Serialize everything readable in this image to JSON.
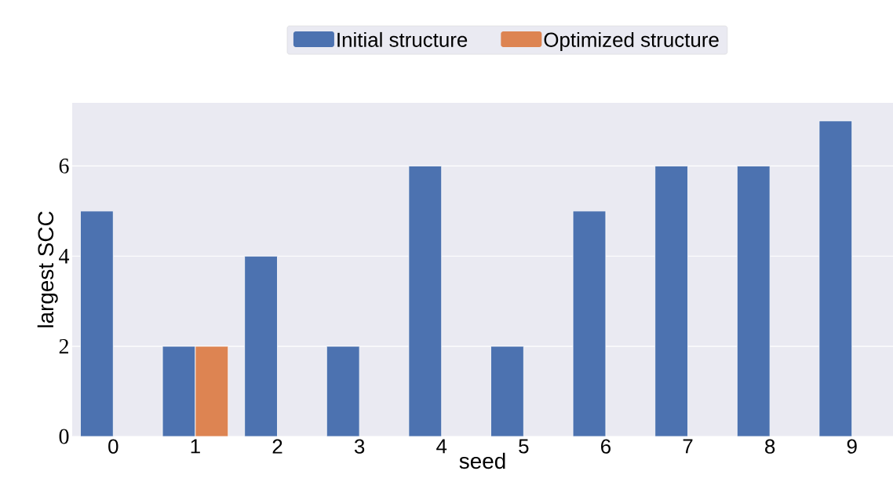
{
  "chart_data": {
    "type": "bar",
    "xlabel": "seed",
    "ylabel": "largest SCC",
    "categories": [
      "0",
      "1",
      "2",
      "3",
      "4",
      "5",
      "6",
      "7",
      "8",
      "9"
    ],
    "series": [
      {
        "name": "Initial structure",
        "color": "#4c72b0",
        "values": [
          5,
          2,
          4,
          2,
          6,
          2,
          5,
          6,
          6,
          7
        ]
      },
      {
        "name": "Optimized structure",
        "color": "#dd8452",
        "values": [
          null,
          2,
          null,
          null,
          null,
          null,
          null,
          null,
          null,
          null
        ]
      }
    ],
    "ylim": [
      0,
      7.4
    ],
    "yticks": [
      0,
      2,
      4,
      6
    ],
    "grid": "y",
    "legend": "top"
  }
}
